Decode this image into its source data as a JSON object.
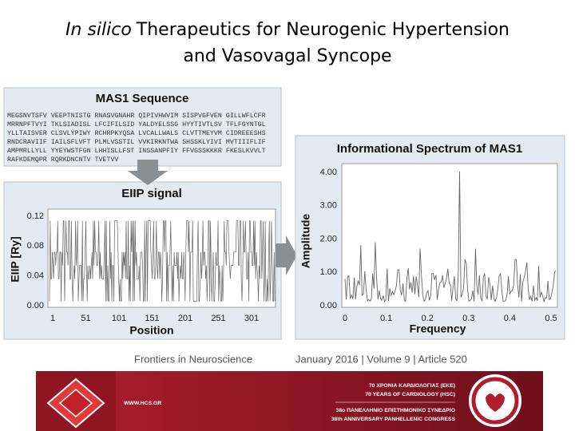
{
  "header": {
    "title_italic": "In silico",
    "title_rest": "Therapeutics for Neurogenic Hypertension",
    "title_line2": "and Vasovagal Syncope"
  },
  "figure": {
    "sequence_panel": {
      "title": "MAS1 Sequence",
      "lines": [
        "MEGSNVTSFV VEEPTNISTG RNASVGNAHR QIPIVHWVIM SISPVGFVEN GILLWFLCFR",
        "MRRNPFTVYI TKLSIADISL LFCIFILSID YALDYELSSG HYYTIVTLSV TFLFGYNTGL",
        "YLLTAISVER CLSVLYPIWY RCHRPKYQSA LVCALLWALS CLVTTMEYVM CIDREEESHS",
        "RNDCRAVIIF IAILSFLVFT PLMLVSSTIL VVKIRKNTWA SHSSKLYIVI MVTIIIFLIF",
        "AMPMRLLYLL YYEYWSTFGN LHHISLLFST INSSANPFIY FFVGSSKKKR FKESLKVVLT",
        "RAFKDEMQPR RQRKDNCNTV TVETVV"
      ]
    },
    "eiip_panel": {
      "title": "EIIP signal",
      "y_label": "EIIP [Ry]",
      "y_ticks": [
        "0.12",
        "0.08",
        "0.04",
        "0.00"
      ],
      "x_ticks": [
        "1",
        "51",
        "101",
        "151",
        "201",
        "251",
        "301"
      ],
      "x_label": "Position"
    },
    "spectrum_panel": {
      "title": "Informational Spectrum of MAS1",
      "y_label": "Amplitude",
      "y_ticks": [
        "4.00",
        "3.00",
        "2.00",
        "1.00",
        "0.00"
      ],
      "x_ticks": [
        "0",
        "0.1",
        "0.2",
        "0.3",
        "0.4",
        "0.5"
      ],
      "x_label": "Frequency"
    },
    "citation": {
      "journal": "Frontiers in Neuroscience",
      "issue": "January 2016 | Volume 9 | Article 520"
    }
  },
  "footer": {
    "url": "WWW.HCS.GR",
    "line1": "70 ΧΡΟΝΙΑ ΚΑΡΔΙΟΛΟΓΙΑΣ (ΕΚΕ)",
    "line2": "70 YEARS OF CARDIOLOGY (HSC)",
    "line3": "38ο ΠΑΝΕΛΛΗΝΙΟ ΕΠΙΣΤΗΜΟΝΙΚΟ ΣΥΝΕΔΡΙΟ",
    "line4": "38th ANNIVERSARY PANHELLENIC CONGRESS"
  }
}
